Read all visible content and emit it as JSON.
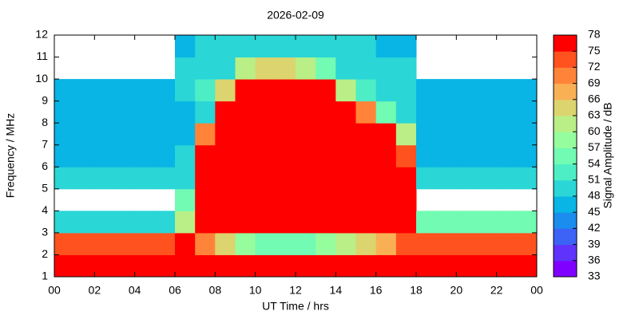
{
  "chart_data": {
    "type": "heatmap",
    "title": "2026-02-09",
    "x_label": "UT Time / hrs",
    "y_label": "Frequency / MHz",
    "colorbar_label": "Signal Amplitude / dB",
    "xlim": [
      0,
      24
    ],
    "xticks": [
      {
        "value": 0,
        "label": "00"
      },
      {
        "value": 2,
        "label": "02"
      },
      {
        "value": 4,
        "label": "04"
      },
      {
        "value": 6,
        "label": "06"
      },
      {
        "value": 8,
        "label": "08"
      },
      10,
      12,
      14,
      16,
      18,
      20,
      22,
      {
        "value": 24,
        "label": "00"
      }
    ],
    "ylim": [
      1,
      12
    ],
    "yticks": [
      1,
      2,
      3,
      4,
      5,
      6,
      7,
      8,
      9,
      10,
      11,
      12
    ],
    "xbins": [
      0,
      1,
      2,
      3,
      4,
      5,
      6,
      7,
      8,
      9,
      10,
      11,
      12,
      13,
      14,
      15,
      16,
      17,
      18,
      19,
      20,
      21,
      22,
      23,
      24
    ],
    "ybins": [
      1,
      2,
      3,
      4,
      5,
      6,
      7,
      8,
      9,
      10,
      11,
      12
    ],
    "values": [
      [
        76,
        76,
        76,
        76,
        76,
        76,
        77,
        78,
        78,
        78,
        78,
        78,
        78,
        78,
        78,
        78,
        78,
        78,
        76,
        76,
        76,
        76,
        76,
        76
      ],
      [
        72,
        72,
        72,
        72,
        72,
        72,
        75,
        70,
        63,
        57,
        55,
        55,
        55,
        57,
        60,
        63,
        66,
        72,
        72,
        72,
        72,
        72,
        72,
        72
      ],
      [
        50,
        50,
        50,
        50,
        50,
        50,
        60,
        75,
        75,
        75,
        75,
        75,
        75,
        75,
        75,
        75,
        75,
        75,
        55,
        55,
        55,
        55,
        55,
        55
      ],
      [
        null,
        null,
        null,
        null,
        null,
        null,
        55,
        77,
        77,
        77,
        77,
        77,
        77,
        77,
        77,
        77,
        77,
        77,
        null,
        null,
        null,
        null,
        null,
        null
      ],
      [
        48,
        48,
        48,
        48,
        48,
        48,
        50,
        77,
        77,
        77,
        77,
        77,
        77,
        77,
        77,
        77,
        77,
        77,
        48,
        48,
        48,
        48,
        48,
        48
      ],
      [
        47,
        47,
        47,
        47,
        47,
        47,
        48,
        75,
        77,
        77,
        77,
        77,
        77,
        77,
        77,
        77,
        77,
        72,
        47,
        47,
        47,
        47,
        47,
        47
      ],
      [
        46,
        46,
        46,
        46,
        46,
        46,
        47,
        70,
        77,
        77,
        77,
        77,
        77,
        77,
        77,
        77,
        77,
        60,
        46,
        46,
        46,
        46,
        46,
        46
      ],
      [
        46,
        46,
        46,
        46,
        46,
        46,
        47,
        50,
        77,
        77,
        77,
        77,
        77,
        77,
        77,
        70,
        55,
        50,
        46,
        46,
        46,
        46,
        46,
        46
      ],
      [
        46,
        46,
        46,
        46,
        46,
        46,
        50,
        52,
        65,
        76,
        76,
        76,
        76,
        76,
        60,
        52,
        50,
        50,
        46,
        46,
        46,
        46,
        46,
        46
      ],
      [
        null,
        null,
        null,
        null,
        null,
        null,
        48,
        50,
        50,
        60,
        65,
        65,
        60,
        55,
        50,
        48,
        48,
        48,
        null,
        null,
        null,
        null,
        null,
        null
      ],
      [
        null,
        null,
        null,
        null,
        null,
        null,
        45,
        48,
        48,
        48,
        48,
        48,
        48,
        48,
        48,
        48,
        47,
        47,
        null,
        null,
        null,
        null,
        null,
        null
      ]
    ],
    "colorbar": {
      "levels": [
        33,
        36,
        39,
        42,
        45,
        48,
        51,
        54,
        57,
        60,
        63,
        66,
        69,
        72,
        75,
        78
      ],
      "colors": [
        "#8000ff",
        "#5f33fb",
        "#3c63f5",
        "#1a8dee",
        "#08b5e4",
        "#2ad6d6",
        "#4deec6",
        "#71fbb3",
        "#95fd9d",
        "#b9ef86",
        "#dcd46e",
        "#f9b055",
        "#ff8439",
        "#ff521e",
        "#ff0000"
      ]
    }
  }
}
